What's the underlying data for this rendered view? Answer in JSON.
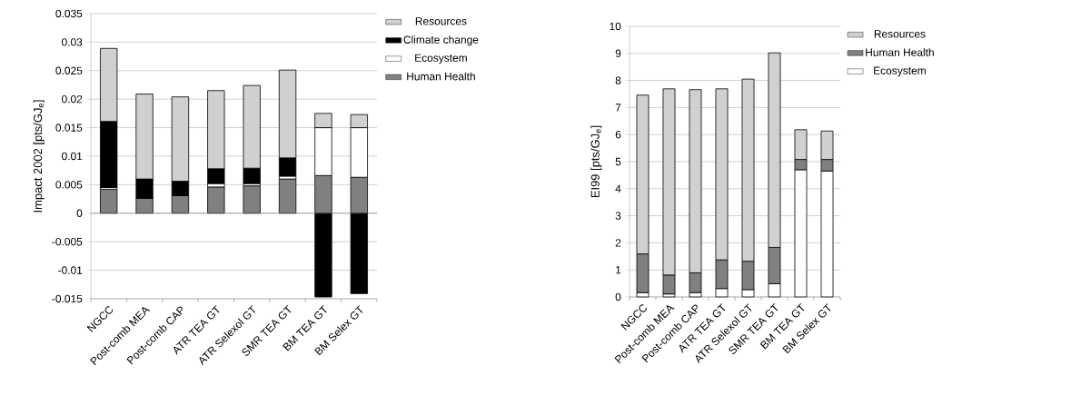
{
  "chart_data": [
    {
      "type": "bar",
      "stacked": true,
      "ylabel": "Impact 2002 [pts/GJ$_{e}$]",
      "categories": [
        "NGCC",
        "Post-comb MEA",
        "Post-comb CAP",
        "ATR TEA GT",
        "ATR Selexol GT",
        "SMR TEA GT",
        "BM TEA GT",
        "BM Selex GT"
      ],
      "series": [
        {
          "name": "Human Health",
          "color": "#808080",
          "values": [
            0.0042,
            0.0026,
            0.0031,
            0.0046,
            0.0048,
            0.006,
            0.0066,
            0.0063
          ]
        },
        {
          "name": "Ecosystem",
          "color": "#ffffff",
          "values": [
            0.0003,
            0,
            0,
            0.0006,
            0.0004,
            0.0005,
            0.0084,
            0.0087
          ]
        },
        {
          "name": "Climate change",
          "color": "#000000",
          "values": [
            0.0116,
            0.0034,
            0.0025,
            0.0026,
            0.0027,
            0.0032,
            -0.0147,
            -0.0141
          ]
        },
        {
          "name": "Resources",
          "color": "#d0d0d0",
          "values": [
            0.0128,
            0.0149,
            0.0148,
            0.0137,
            0.0145,
            0.0154,
            0.0025,
            0.0023
          ]
        }
      ],
      "ylim": [
        -0.015,
        0.035
      ],
      "yticks": [
        -0.015,
        -0.01,
        -0.005,
        0,
        0.005,
        0.01,
        0.015,
        0.02,
        0.025,
        0.03,
        0.035
      ],
      "grid": "y",
      "legend": "right"
    },
    {
      "type": "bar",
      "stacked": true,
      "ylabel": "EI99 [pts/GJ$_{e}$]",
      "categories": [
        "NGCC",
        "Post-comb MEA",
        "Post-comb CAP",
        "ATR TEA GT",
        "ATR Selexol GT",
        "SMR TEA GT",
        "BM TEA GT",
        "BM Selex GT"
      ],
      "series": [
        {
          "name": "Ecosystem",
          "color": "#ffffff",
          "values": [
            0.16,
            0.11,
            0.16,
            0.31,
            0.27,
            0.49,
            4.7,
            4.65
          ]
        },
        {
          "name": "Human Health",
          "color": "#808080",
          "values": [
            1.43,
            0.7,
            0.73,
            1.06,
            1.05,
            1.34,
            0.38,
            0.43
          ]
        },
        {
          "name": "Resources",
          "color": "#d0d0d0",
          "values": [
            5.87,
            6.88,
            6.77,
            6.32,
            6.73,
            7.19,
            1.1,
            1.05
          ]
        }
      ],
      "ylim": [
        0,
        10
      ],
      "yticks": [
        0,
        1,
        2,
        3,
        4,
        5,
        6,
        7,
        8,
        9,
        10
      ],
      "grid": "y",
      "legend": "right"
    }
  ]
}
